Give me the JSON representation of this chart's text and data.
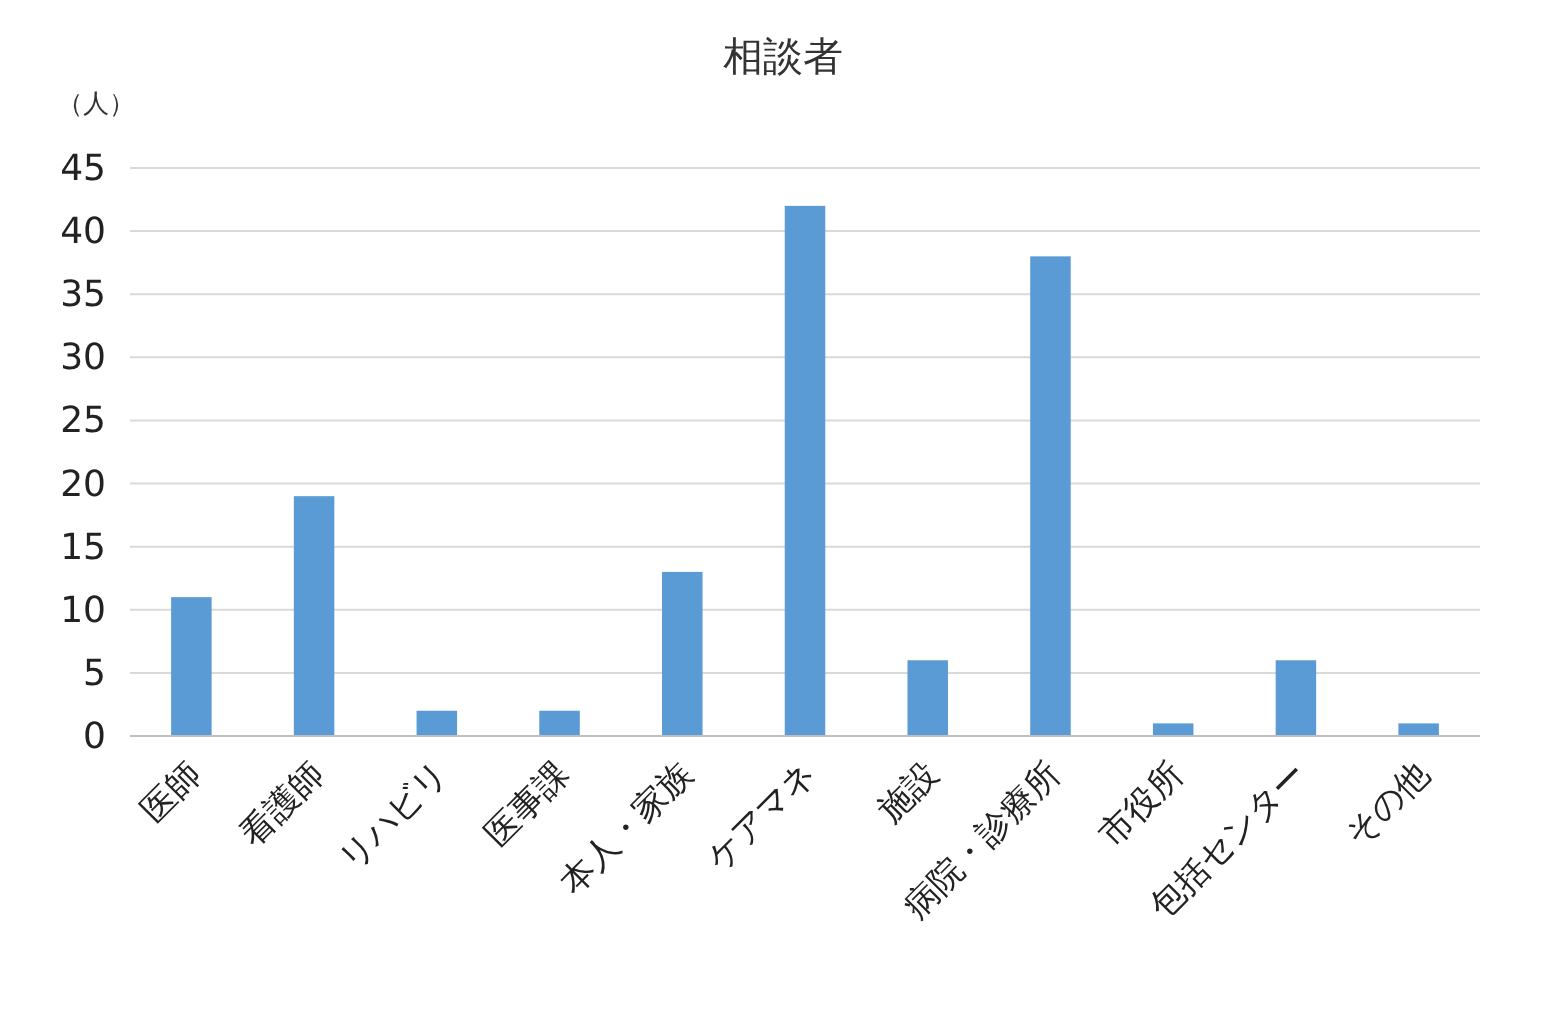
{
  "chart_data": {
    "type": "bar",
    "title": "相談者",
    "ylabel": "（人）",
    "categories": [
      "医師",
      "看護師",
      "リハビリ",
      "医事課",
      "本人・家族",
      "ケアマネ",
      "施設",
      "病院・診療所",
      "市役所",
      "包括センター",
      "その他"
    ],
    "values": [
      11,
      19,
      2,
      2,
      13,
      42,
      6,
      38,
      1,
      6,
      1
    ],
    "color": "#5b9bd5",
    "ylim": [
      0,
      45
    ],
    "yticks": [
      0,
      5,
      10,
      15,
      20,
      25,
      30,
      35,
      40,
      45
    ],
    "grid": "y"
  }
}
